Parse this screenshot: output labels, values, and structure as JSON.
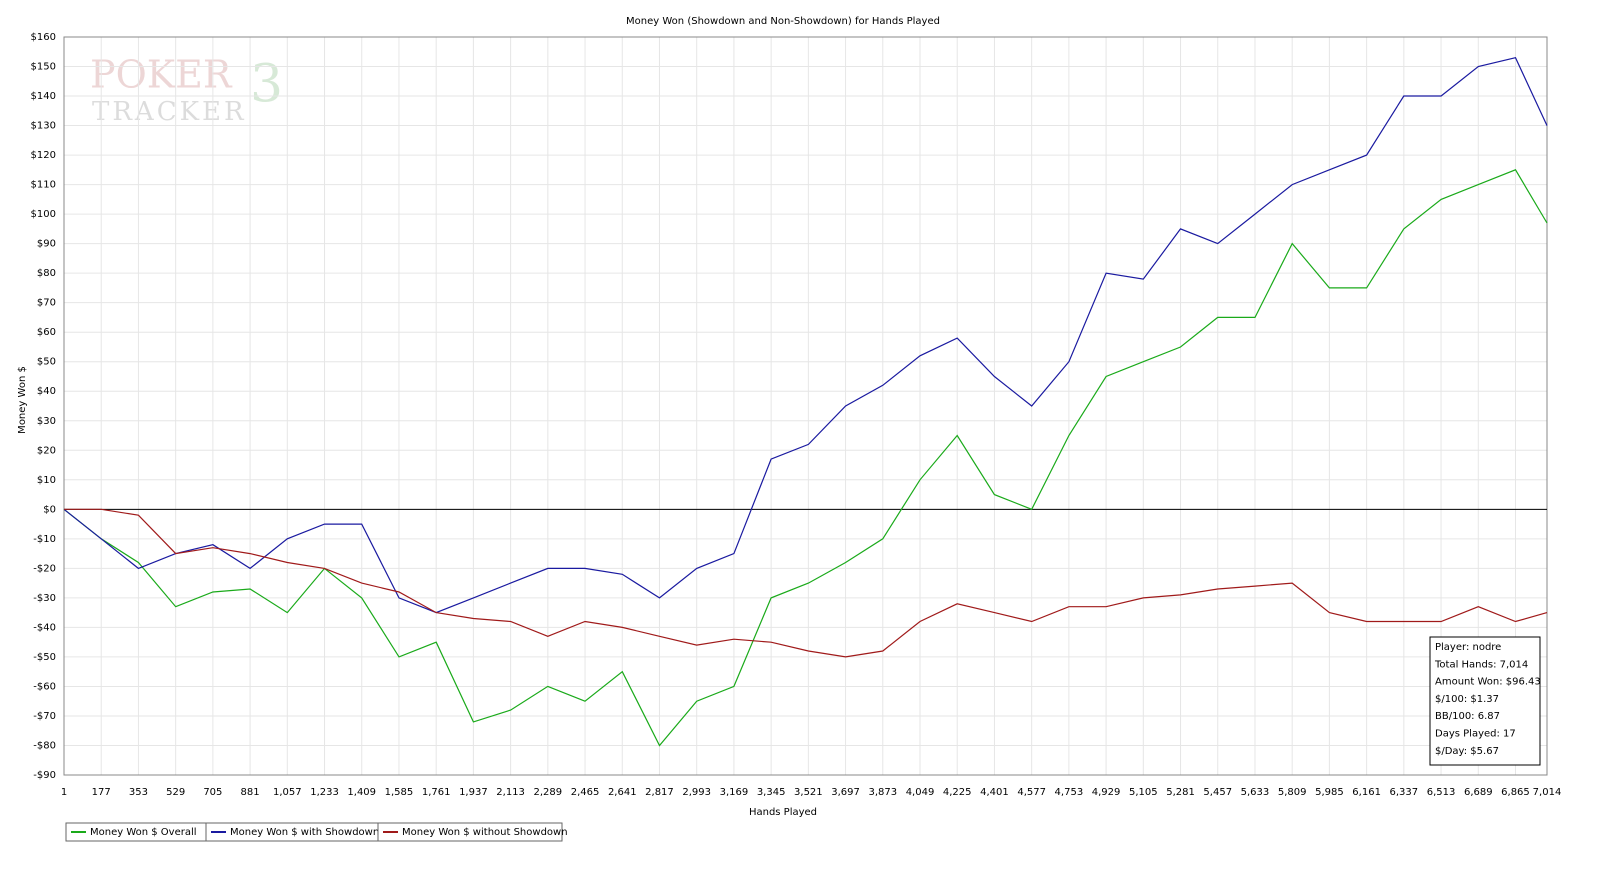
{
  "chart_data": {
    "type": "line",
    "title": "Money Won (Showdown and Non-Showdown) for Hands Played",
    "x_label": "Hands Played",
    "y_label": "Money Won $",
    "watermark": [
      "POKER",
      "TRACKER",
      "3"
    ],
    "x": [
      1,
      177,
      353,
      529,
      705,
      881,
      1057,
      1233,
      1409,
      1585,
      1761,
      1937,
      2113,
      2289,
      2465,
      2641,
      2817,
      2993,
      3169,
      3345,
      3521,
      3697,
      3873,
      4049,
      4225,
      4401,
      4577,
      4753,
      4929,
      5105,
      5281,
      5457,
      5633,
      5809,
      5985,
      6161,
      6337,
      6513,
      6689,
      6865,
      7014
    ],
    "series": [
      {
        "name": "Money Won $ Overall",
        "color": "#1aaa1a",
        "values": [
          0,
          -10,
          -18,
          -33,
          -28,
          -27,
          -35,
          -20,
          -30,
          -50,
          -45,
          -72,
          -68,
          -60,
          -65,
          -55,
          -80,
          -65,
          -60,
          -30,
          -25,
          -18,
          -10,
          10,
          25,
          5,
          0,
          25,
          45,
          50,
          55,
          65,
          65,
          90,
          75,
          75,
          95,
          105,
          110,
          115,
          97
        ]
      },
      {
        "name": "Money Won $ with Showdown",
        "color": "#1a1aa0",
        "values": [
          0,
          -10,
          -20,
          -15,
          -12,
          -20,
          -10,
          -5,
          -5,
          -30,
          -35,
          -30,
          -25,
          -20,
          -20,
          -22,
          -30,
          -20,
          -15,
          17,
          22,
          35,
          42,
          52,
          58,
          45,
          35,
          50,
          80,
          78,
          95,
          90,
          100,
          110,
          115,
          120,
          140,
          140,
          150,
          153,
          130
        ]
      },
      {
        "name": "Money Won $ without Showdown",
        "color": "#a01a1a",
        "values": [
          0,
          0,
          -2,
          -15,
          -13,
          -15,
          -18,
          -20,
          -25,
          -28,
          -35,
          -37,
          -38,
          -43,
          -38,
          -40,
          -43,
          -46,
          -44,
          -45,
          -48,
          -50,
          -48,
          -38,
          -32,
          -35,
          -38,
          -33,
          -33,
          -30,
          -29,
          -27,
          -26,
          -25,
          -35,
          -38,
          -38,
          -38,
          -33,
          -38,
          -35
        ]
      }
    ],
    "xlim": [
      1,
      7014
    ],
    "xticks": [
      1,
      177,
      353,
      529,
      705,
      881,
      {
        "value": 1057,
        "label": "1,057"
      },
      {
        "value": 1233,
        "label": "1,233"
      },
      {
        "value": 1409,
        "label": "1,409"
      },
      {
        "value": 1585,
        "label": "1,585"
      },
      {
        "value": 1761,
        "label": "1,761"
      },
      {
        "value": 1937,
        "label": "1,937"
      },
      {
        "value": 2113,
        "label": "2,113"
      },
      {
        "value": 2289,
        "label": "2,289"
      },
      {
        "value": 2465,
        "label": "2,465"
      },
      {
        "value": 2641,
        "label": "2,641"
      },
      {
        "value": 2817,
        "label": "2,817"
      },
      {
        "value": 2993,
        "label": "2,993"
      },
      {
        "value": 3169,
        "label": "3,169"
      },
      {
        "value": 3345,
        "label": "3,345"
      },
      {
        "value": 3521,
        "label": "3,521"
      },
      {
        "value": 3697,
        "label": "3,697"
      },
      {
        "value": 3873,
        "label": "3,873"
      },
      {
        "value": 4049,
        "label": "4,049"
      },
      {
        "value": 4225,
        "label": "4,225"
      },
      {
        "value": 4401,
        "label": "4,401"
      },
      {
        "value": 4577,
        "label": "4,577"
      },
      {
        "value": 4753,
        "label": "4,753"
      },
      {
        "value": 4929,
        "label": "4,929"
      },
      {
        "value": 5105,
        "label": "5,105"
      },
      {
        "value": 5281,
        "label": "5,281"
      },
      {
        "value": 5457,
        "label": "5,457"
      },
      {
        "value": 5633,
        "label": "5,633"
      },
      {
        "value": 5809,
        "label": "5,809"
      },
      {
        "value": 5985,
        "label": "5,985"
      },
      {
        "value": 6161,
        "label": "6,161"
      },
      {
        "value": 6337,
        "label": "6,337"
      },
      {
        "value": 6513,
        "label": "6,513"
      },
      {
        "value": 6689,
        "label": "6,689"
      },
      {
        "value": 6865,
        "label": "6,865"
      },
      {
        "value": 7014,
        "label": "7,014"
      }
    ],
    "ylim": [
      -90,
      160
    ],
    "yticks": [
      {
        "value": -90,
        "label": "-$90"
      },
      {
        "value": -80,
        "label": "-$80"
      },
      {
        "value": -70,
        "label": "-$70"
      },
      {
        "value": -60,
        "label": "-$60"
      },
      {
        "value": -50,
        "label": "-$50"
      },
      {
        "value": -40,
        "label": "-$40"
      },
      {
        "value": -30,
        "label": "-$30"
      },
      {
        "value": -20,
        "label": "-$20"
      },
      {
        "value": -10,
        "label": "-$10"
      },
      {
        "value": 0,
        "label": "$0"
      },
      {
        "value": 10,
        "label": "$10"
      },
      {
        "value": 20,
        "label": "$20"
      },
      {
        "value": 30,
        "label": "$30"
      },
      {
        "value": 40,
        "label": "$40"
      },
      {
        "value": 50,
        "label": "$50"
      },
      {
        "value": 60,
        "label": "$60"
      },
      {
        "value": 70,
        "label": "$70"
      },
      {
        "value": 80,
        "label": "$80"
      },
      {
        "value": 90,
        "label": "$90"
      },
      {
        "value": 100,
        "label": "$100"
      },
      {
        "value": 110,
        "label": "$110"
      },
      {
        "value": 120,
        "label": "$120"
      },
      {
        "value": 130,
        "label": "$130"
      },
      {
        "value": 140,
        "label": "$140"
      },
      {
        "value": 150,
        "label": "$150"
      },
      {
        "value": 160,
        "label": "$160"
      }
    ],
    "grid": true,
    "info": [
      "Player: nodre",
      "Total Hands: 7,014",
      "Amount Won: $96.43",
      "$/100: $1.37",
      "BB/100: 6.87",
      "Days Played: 17",
      "$/Day: $5.67"
    ]
  }
}
